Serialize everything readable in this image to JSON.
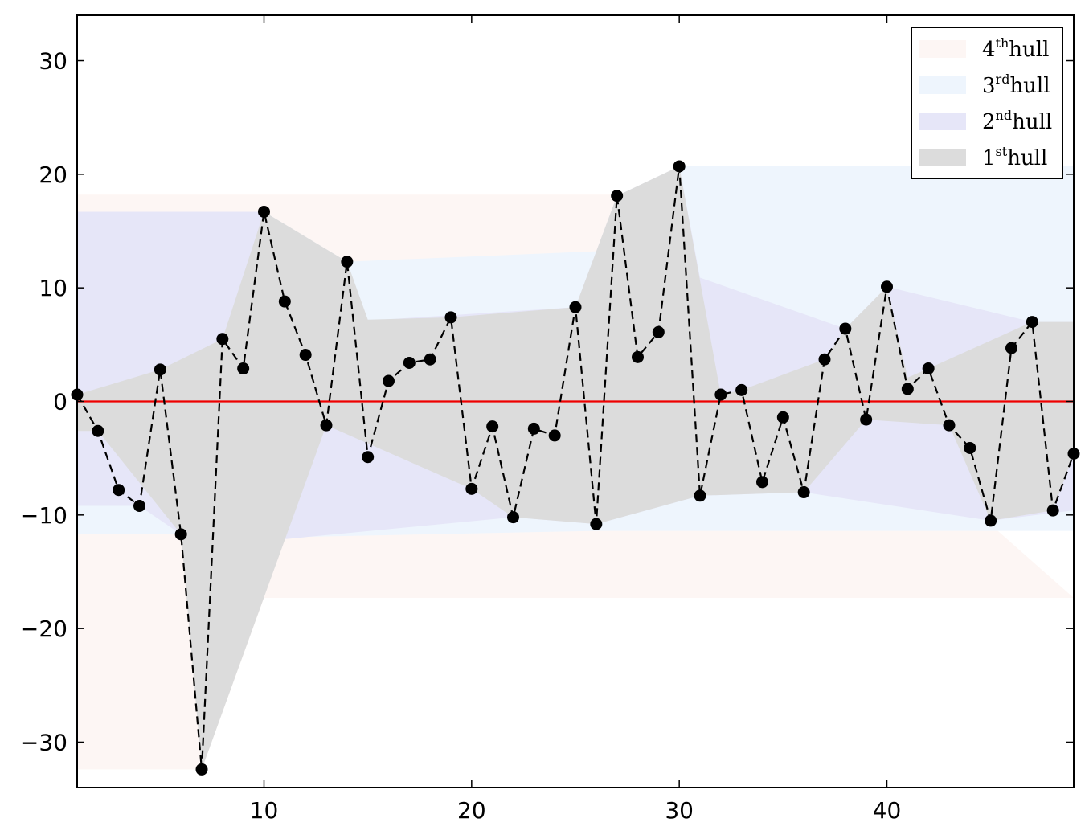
{
  "chart_data": {
    "type": "line",
    "x": [
      1,
      2,
      3,
      4,
      5,
      6,
      7,
      8,
      9,
      10,
      11,
      12,
      13,
      14,
      15,
      16,
      17,
      18,
      19,
      20,
      21,
      22,
      23,
      24,
      25,
      26,
      27,
      28,
      29,
      30,
      31,
      32,
      33,
      34,
      35,
      36,
      37,
      38,
      39,
      40,
      41,
      42,
      43,
      44,
      45,
      46,
      47,
      48,
      49
    ],
    "series": [
      {
        "values": [
          0.6,
          -2.6,
          -7.8,
          -9.2,
          2.8,
          -11.7,
          -32.4,
          5.5,
          2.9,
          16.7,
          8.8,
          4.1,
          -2.1,
          12.3,
          -4.9,
          1.8,
          3.4,
          3.7,
          7.4,
          -7.7,
          -2.2,
          -10.2,
          -2.4,
          -3.0,
          8.3,
          -10.8,
          18.1,
          3.9,
          6.1,
          20.7,
          -8.3,
          0.6,
          1.0,
          -7.1,
          -1.4,
          -8.0,
          3.7,
          6.4,
          -1.6,
          10.1,
          1.1,
          2.9,
          -2.1,
          -4.1,
          -10.5,
          4.7,
          7.0,
          -9.6,
          -4.6
        ],
        "color": "#000000",
        "line_style": "dashed",
        "marker": "circle"
      }
    ],
    "reference_line": {
      "y": 0,
      "color": "#ee0000"
    },
    "hulls": [
      {
        "label_base": "4",
        "label_sup": "th",
        "label_word": "hull",
        "color": "#fdf6f4",
        "upper": [
          [
            1,
            18.2
          ],
          [
            27,
            18.2
          ]
        ],
        "lower": [
          [
            1,
            -32.4
          ],
          [
            7,
            -32.4
          ],
          [
            10,
            -17.3
          ],
          [
            49,
            -17.3
          ]
        ]
      },
      {
        "label_base": "3",
        "label_sup": "rd",
        "label_word": "hull",
        "color": "#eef5fd",
        "upper": [
          [
            1,
            16.7
          ],
          [
            10,
            16.7
          ],
          [
            14,
            12.3
          ],
          [
            27,
            13.3
          ],
          [
            30,
            20.7
          ],
          [
            49,
            20.7
          ]
        ],
        "lower": [
          [
            1,
            -11.7
          ],
          [
            6,
            -11.7
          ],
          [
            10,
            -12.0
          ],
          [
            26,
            -11.4
          ],
          [
            49,
            -11.4
          ]
        ]
      },
      {
        "label_base": "2",
        "label_sup": "nd",
        "label_word": "hull",
        "color": "#e6e6f8",
        "upper": [
          [
            1,
            16.7
          ],
          [
            10,
            16.7
          ],
          [
            11,
            8.8
          ],
          [
            14,
            7.0
          ],
          [
            25,
            8.3
          ],
          [
            27,
            18.1
          ],
          [
            30,
            20.7
          ],
          [
            31,
            10.9
          ],
          [
            38,
            6.4
          ],
          [
            40,
            10.1
          ],
          [
            47,
            7.0
          ],
          [
            49,
            7.0
          ]
        ],
        "lower": [
          [
            1,
            -9.2
          ],
          [
            4,
            -9.2
          ],
          [
            6,
            -11.7
          ],
          [
            10,
            -12.3
          ],
          [
            22,
            -10.2
          ],
          [
            26,
            -10.8
          ],
          [
            31,
            -8.3
          ],
          [
            36,
            -8.0
          ],
          [
            45,
            -10.5
          ],
          [
            49,
            -9.6
          ]
        ]
      },
      {
        "label_base": "1",
        "label_sup": "st",
        "label_word": "hull",
        "color": "#dcdcdc",
        "upper": [
          [
            1,
            0.6
          ],
          [
            5,
            2.8
          ],
          [
            8,
            5.5
          ],
          [
            10,
            16.7
          ],
          [
            14,
            12.3
          ],
          [
            15,
            7.2
          ],
          [
            19,
            7.4
          ],
          [
            25,
            8.3
          ],
          [
            27,
            18.1
          ],
          [
            30,
            20.7
          ],
          [
            32,
            0.6
          ],
          [
            33,
            1.0
          ],
          [
            37,
            3.7
          ],
          [
            38,
            6.4
          ],
          [
            40,
            10.1
          ],
          [
            41,
            2.1
          ],
          [
            42,
            2.9
          ],
          [
            47,
            7.0
          ],
          [
            49,
            7.0
          ]
        ],
        "lower": [
          [
            1,
            -2.6
          ],
          [
            2,
            -2.6
          ],
          [
            6,
            -11.7
          ],
          [
            7,
            -32.4
          ],
          [
            13,
            -2.1
          ],
          [
            20,
            -7.7
          ],
          [
            22,
            -10.2
          ],
          [
            26,
            -10.8
          ],
          [
            31,
            -8.3
          ],
          [
            36,
            -8.0
          ],
          [
            39,
            -1.6
          ],
          [
            43,
            -2.1
          ],
          [
            45,
            -10.5
          ],
          [
            48,
            -9.6
          ],
          [
            49,
            -4.6
          ]
        ]
      }
    ],
    "xlim": [
      1,
      49
    ],
    "ylim": [
      -34,
      34
    ],
    "xticks": [
      "10",
      "20",
      "30",
      "40"
    ],
    "yticks": [
      "30",
      "20",
      "10",
      "0",
      "−10",
      "−20",
      "−30"
    ],
    "legend": "top-right",
    "grid": false
  }
}
